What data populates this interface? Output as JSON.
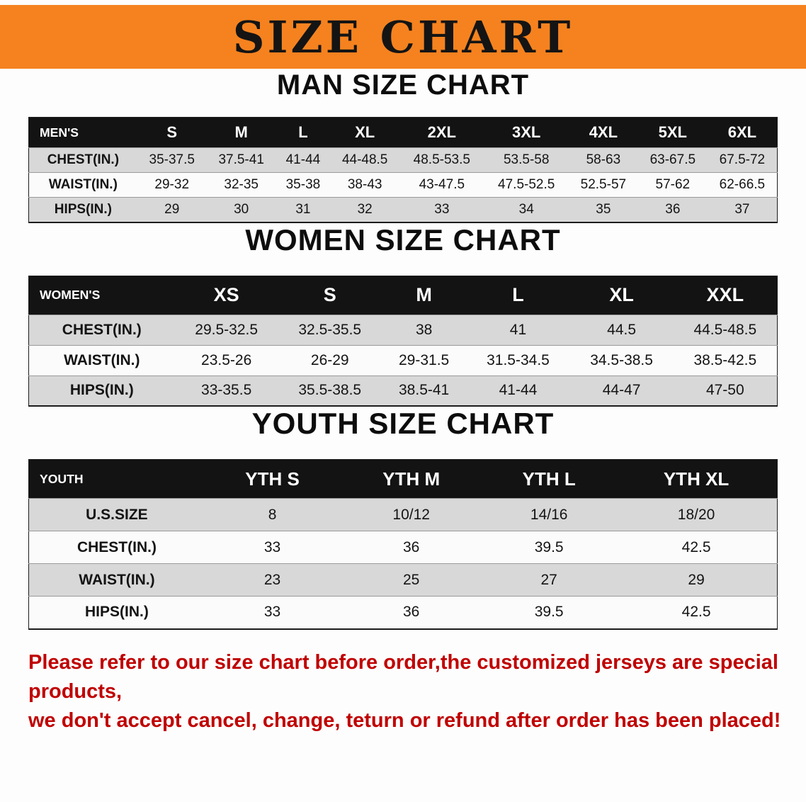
{
  "banner": {
    "title": "SIZE CHART",
    "bg_color": "#f5821f",
    "text_color": "#141414"
  },
  "sections": [
    {
      "id": "men",
      "heading": "MAN SIZE CHART",
      "table": {
        "label_header": "MEN'S",
        "size_headers": [
          "S",
          "M",
          "L",
          "XL",
          "2XL",
          "3XL",
          "4XL",
          "5XL",
          "6XL"
        ],
        "rows": [
          {
            "label": "CHEST(IN.)",
            "values": [
              "35-37.5",
              "37.5-41",
              "41-44",
              "44-48.5",
              "48.5-53.5",
              "53.5-58",
              "58-63",
              "63-67.5",
              "67.5-72"
            ]
          },
          {
            "label": "WAIST(IN.)",
            "values": [
              "29-32",
              "32-35",
              "35-38",
              "38-43",
              "43-47.5",
              "47.5-52.5",
              "52.5-57",
              "57-62",
              "62-66.5"
            ]
          },
          {
            "label": "HIPS(IN.)",
            "values": [
              "29",
              "30",
              "31",
              "32",
              "33",
              "34",
              "35",
              "36",
              "37"
            ]
          }
        ]
      }
    },
    {
      "id": "women",
      "heading": "WOMEN SIZE CHART",
      "table": {
        "label_header": "WOMEN'S",
        "size_headers": [
          "XS",
          "S",
          "M",
          "L",
          "XL",
          "XXL"
        ],
        "rows": [
          {
            "label": "CHEST(IN.)",
            "values": [
              "29.5-32.5",
              "32.5-35.5",
              "38",
              "41",
              "44.5",
              "44.5-48.5"
            ]
          },
          {
            "label": "WAIST(IN.)",
            "values": [
              "23.5-26",
              "26-29",
              "29-31.5",
              "31.5-34.5",
              "34.5-38.5",
              "38.5-42.5"
            ]
          },
          {
            "label": "HIPS(IN.)",
            "values": [
              "33-35.5",
              "35.5-38.5",
              "38.5-41",
              "41-44",
              "44-47",
              "47-50"
            ]
          }
        ]
      }
    },
    {
      "id": "youth",
      "heading": "YOUTH SIZE CHART",
      "table": {
        "label_header": "YOUTH",
        "size_headers": [
          "YTH S",
          "YTH M",
          "YTH L",
          "YTH XL"
        ],
        "rows": [
          {
            "label": "U.S.SIZE",
            "values": [
              "8",
              "10/12",
              "14/16",
              "18/20"
            ]
          },
          {
            "label": "CHEST(IN.)",
            "values": [
              "33",
              "36",
              "39.5",
              "42.5"
            ]
          },
          {
            "label": "WAIST(IN.)",
            "values": [
              "23",
              "25",
              "27",
              "29"
            ]
          },
          {
            "label": "HIPS(IN.)",
            "values": [
              "33",
              "36",
              "39.5",
              "42.5"
            ]
          }
        ]
      }
    }
  ],
  "disclaimer": {
    "line1": "Please refer to our size chart before order,the customized jerseys are special products,",
    "line2": "we don't accept cancel, change, teturn or refund after order has been placed!",
    "color": "#c00000"
  }
}
